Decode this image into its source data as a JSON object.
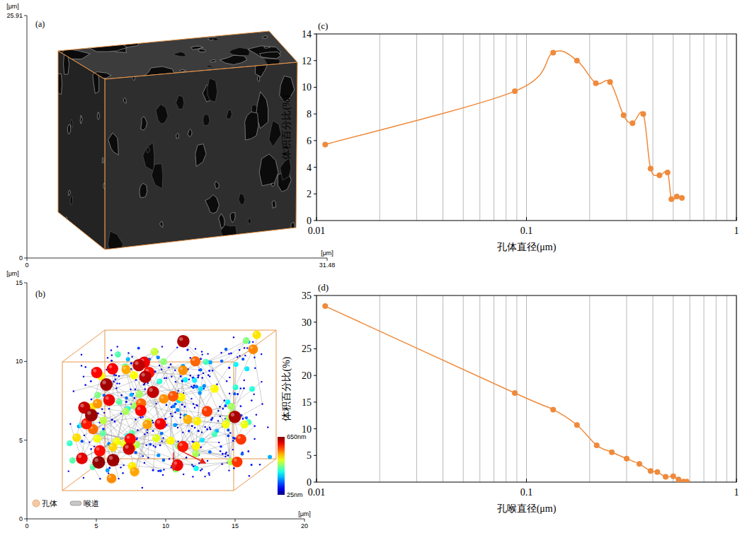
{
  "chart_data": [
    {
      "type": "image",
      "title": "(a)",
      "xlabel": "[μm]",
      "ylabel": "[μm]",
      "xlim": [
        0,
        31.48
      ],
      "xticks": [
        0,
        31.48
      ],
      "ylim": [
        0,
        25.91
      ],
      "yticks": [
        0,
        25.91
      ]
    },
    {
      "type": "network",
      "title": "(b)",
      "xlabel": "[μm]",
      "ylabel": "[μm]",
      "xlim": [
        0,
        20
      ],
      "xticks": [
        0,
        5,
        10,
        15,
        20
      ],
      "ylim": [
        0,
        15
      ],
      "yticks": [
        0,
        5,
        10,
        15
      ],
      "colorbar": {
        "range": [
          25,
          650
        ],
        "ticks": [
          {
            "value": 650,
            "label": "650nm"
          },
          {
            "value": 25,
            "label": "25nm"
          }
        ]
      },
      "series": [
        {
          "name": "孔体",
          "marker": "sphere"
        },
        {
          "name": "喉道",
          "marker": "cylinder"
        }
      ],
      "legend": "lower left"
    },
    {
      "type": "line",
      "title": "(c)",
      "xlabel": "孔体直径(μm)",
      "ylabel": "体积百分比(%)",
      "log": "x",
      "grid": true,
      "xlim": [
        0.01,
        1
      ],
      "xticks": [
        0.01,
        0.1,
        1
      ],
      "ylim": [
        0,
        14
      ],
      "yticks": [
        0,
        2,
        4,
        6,
        8,
        10,
        12,
        14
      ],
      "color": "#ef8a3c",
      "marker": "circle",
      "line_style": "solid",
      "x": [
        0.011,
        0.088,
        0.134,
        0.174,
        0.214,
        0.25,
        0.29,
        0.32,
        0.36,
        0.39,
        0.43,
        0.47,
        0.49,
        0.52,
        0.55
      ],
      "values": [
        5.7,
        9.7,
        12.6,
        12.0,
        10.3,
        10.4,
        7.9,
        7.3,
        8.0,
        3.9,
        3.4,
        3.6,
        1.6,
        1.8,
        1.7
      ]
    },
    {
      "type": "line",
      "title": "(d)",
      "xlabel": "孔喉直径(μm)",
      "ylabel": "体积百分比(%)",
      "log": "x",
      "grid": true,
      "xlim": [
        0.01,
        1
      ],
      "xticks": [
        0.01,
        0.1,
        1
      ],
      "ylim": [
        0,
        35
      ],
      "yticks": [
        0,
        5,
        10,
        15,
        20,
        25,
        30,
        35
      ],
      "color": "#ef8a3c",
      "marker": "circle",
      "line_style": "solid",
      "x": [
        0.011,
        0.088,
        0.134,
        0.174,
        0.216,
        0.255,
        0.3,
        0.345,
        0.39,
        0.42,
        0.46,
        0.5,
        0.53,
        0.56,
        0.58
      ],
      "values": [
        33.0,
        16.7,
        13.6,
        10.7,
        6.9,
        5.6,
        4.4,
        3.4,
        2.1,
        1.9,
        1.0,
        1.1,
        0.5,
        0.1,
        0.1
      ]
    }
  ]
}
